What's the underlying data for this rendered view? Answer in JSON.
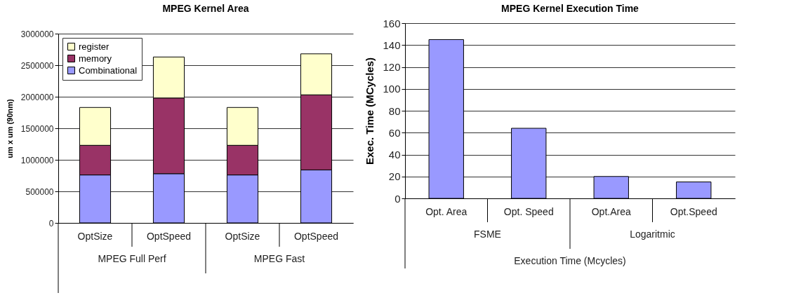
{
  "chart_data": [
    {
      "type": "bar",
      "title": "MPEG Kernel Area",
      "ylabel": "um x um (90nm)",
      "categories": [
        "OptSize",
        "OptSpeed",
        "OptSize",
        "OptSpeed"
      ],
      "stacked": true,
      "series": [
        {
          "name": "Combinational",
          "color": "#9999ff",
          "values": [
            760000,
            780000,
            760000,
            840000
          ]
        },
        {
          "name": "memory",
          "color": "#993366",
          "values": [
            470000,
            1200000,
            470000,
            1190000
          ]
        },
        {
          "name": "register",
          "color": "#ffffcc",
          "values": [
            600000,
            650000,
            600000,
            650000
          ]
        }
      ],
      "ylim": [
        0,
        3000000
      ],
      "yticks": [
        0,
        500000,
        1000000,
        1500000,
        2000000,
        2500000,
        3000000
      ],
      "grid": "y",
      "legend": "top left",
      "annotations": [
        "MPEG Full Perf",
        "MPEG Fast"
      ]
    },
    {
      "type": "bar",
      "title": "MPEG Kernel Execution Time",
      "ylabel": "Exec. Time (MCycles)",
      "xlabel": "Execution Time (Mcycles)",
      "categories": [
        "Opt. Area",
        "Opt. Speed",
        "Opt.Area",
        "Opt.Speed"
      ],
      "series": [
        {
          "color": "#9999ff",
          "values": [
            145,
            64,
            20,
            15
          ]
        }
      ],
      "ylim": [
        0,
        160
      ],
      "yticks": [
        0,
        20,
        40,
        60,
        80,
        100,
        120,
        140,
        160
      ],
      "grid": "y",
      "annotations": [
        "FSME",
        "Logaritmic"
      ]
    }
  ]
}
